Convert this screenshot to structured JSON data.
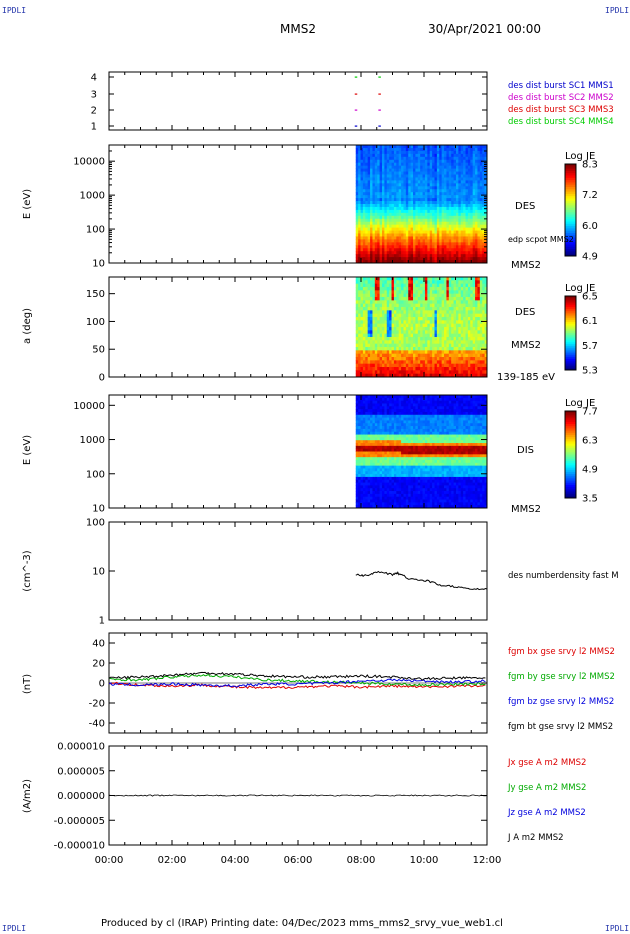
{
  "corners": {
    "tl": "IPDLI",
    "tr": "IPDLI",
    "bl": "IPDLI",
    "br": "IPDLI"
  },
  "header": {
    "title": "MMS2",
    "datetime": "30/Apr/2021 00:00"
  },
  "footer": {
    "text": "Produced by cl (IRAP)   Printing date: 04/Dec/2023   mms_mms2_srvy_vue_web1.cl"
  },
  "colors": {
    "mms1": "#0000cc",
    "mms2": "#cc00cc",
    "mms3": "#dd0000",
    "mms4": "#00cc00",
    "bx": "#dd0000",
    "by": "#00aa00",
    "bz": "#0000dd",
    "bt": "#000000"
  },
  "chart_data": [
    {
      "type": "scatter",
      "panel": "availability",
      "yticks": [
        "1",
        "2",
        "3",
        "4"
      ],
      "legend": [
        "des dist burst SC1 MMS1",
        "des dist burst SC2 MMS2",
        "des dist burst SC3 MMS3",
        "des dist burst SC4 MMS4"
      ],
      "marks": [
        {
          "x": "07:50",
          "sc": 4
        },
        {
          "x": "07:50",
          "sc": 3
        },
        {
          "x": "07:50",
          "sc": 2
        },
        {
          "x": "07:50",
          "sc": 1
        },
        {
          "x": "08:35",
          "sc": 4
        },
        {
          "x": "08:35",
          "sc": 3
        },
        {
          "x": "08:35",
          "sc": 2
        },
        {
          "x": "08:35",
          "sc": 1
        }
      ]
    },
    {
      "type": "heatmap",
      "panel": "des-energy",
      "ylabel": "E (eV)",
      "yscale": "log",
      "ylim": [
        10,
        30000
      ],
      "yticks": [
        "10",
        "100",
        "1000",
        "10000"
      ],
      "colorbar": {
        "title": "Log JE",
        "ticks": [
          "8.3",
          "7.2",
          "6.0",
          "4.9"
        ]
      },
      "labels": [
        "DES",
        "edp scpot MMS2",
        "MMS2"
      ],
      "data_start": "07:50"
    },
    {
      "type": "heatmap",
      "panel": "des-pitch",
      "ylabel": "a (deg)",
      "ylim": [
        0,
        180
      ],
      "yticks": [
        "0",
        "50",
        "100",
        "150"
      ],
      "colorbar": {
        "title": "Log JE",
        "ticks": [
          "6.5",
          "6.1",
          "5.7",
          "5.3"
        ]
      },
      "labels": [
        "DES",
        "MMS2",
        "139-185 eV"
      ],
      "data_start": "07:50"
    },
    {
      "type": "heatmap",
      "panel": "dis-energy",
      "ylabel": "E (eV)",
      "yscale": "log",
      "ylim": [
        10,
        20000
      ],
      "yticks": [
        "10",
        "100",
        "1000",
        "10000"
      ],
      "colorbar": {
        "title": "Log JE",
        "ticks": [
          "7.7",
          "6.3",
          "4.9",
          "3.5"
        ]
      },
      "labels": [
        "DIS",
        "MMS2"
      ],
      "data_start": "07:50"
    },
    {
      "type": "line",
      "panel": "density",
      "ylabel": "(cm^-3)",
      "yscale": "log",
      "ylim": [
        1,
        100
      ],
      "yticks": [
        "1",
        "10",
        "100"
      ],
      "legend": [
        "des numberdensity fast M"
      ],
      "series": [
        {
          "x": [
            "07:50",
            "08:10",
            "08:30",
            "09:00",
            "09:10",
            "09:30",
            "10:00",
            "10:30",
            "11:00",
            "11:30",
            "12:00"
          ],
          "y": [
            8.5,
            8.0,
            9.5,
            8.5,
            9.0,
            7.0,
            6.5,
            5.2,
            4.8,
            4.2,
            4.3
          ]
        }
      ]
    },
    {
      "type": "line",
      "panel": "magnetic-field",
      "ylabel": "(nT)",
      "ylim": [
        -50,
        50
      ],
      "yticks": [
        "-40",
        "-20",
        "0",
        "20",
        "40"
      ],
      "legend": [
        "fgm bx gse srvy l2 MMS2",
        "fgm by gse srvy l2 MMS2",
        "fgm bz gse srvy l2 MMS2",
        "fgm bt gse srvy l2 MMS2"
      ],
      "series": [
        {
          "name": "fgm bx gse srvy l2 MMS2",
          "x": [
            "00:00",
            "01:00",
            "02:00",
            "03:00",
            "04:00",
            "05:00",
            "06:00",
            "07:00",
            "08:00",
            "09:00",
            "10:00",
            "11:00",
            "12:00"
          ],
          "y": [
            0,
            -2,
            -3,
            -2,
            -4,
            -5,
            -4,
            -3,
            -4,
            -3,
            -4,
            -3,
            -3
          ]
        },
        {
          "name": "fgm by gse srvy l2 MMS2",
          "x": [
            "00:00",
            "01:00",
            "02:00",
            "03:00",
            "04:00",
            "05:00",
            "06:00",
            "07:00",
            "08:00",
            "09:00",
            "10:00",
            "11:00",
            "12:00"
          ],
          "y": [
            4,
            3,
            6,
            8,
            6,
            3,
            2,
            1,
            0,
            -1,
            -2,
            -1,
            -1
          ]
        },
        {
          "name": "fgm bz gse srvy l2 MMS2",
          "x": [
            "00:00",
            "01:00",
            "02:00",
            "03:00",
            "04:00",
            "05:00",
            "06:00",
            "07:00",
            "08:00",
            "09:00",
            "10:00",
            "11:00",
            "12:00"
          ],
          "y": [
            -1,
            -2,
            -1,
            -2,
            -3,
            -1,
            -1,
            0,
            2,
            3,
            2,
            1,
            2
          ]
        },
        {
          "name": "fgm bt gse srvy l2 MMS2",
          "x": [
            "00:00",
            "01:00",
            "02:00",
            "03:00",
            "04:00",
            "05:00",
            "06:00",
            "07:00",
            "08:00",
            "09:00",
            "10:00",
            "11:00",
            "12:00"
          ],
          "y": [
            5,
            6,
            8,
            10,
            9,
            7,
            6,
            6,
            7,
            6,
            4,
            5,
            5
          ]
        }
      ]
    },
    {
      "type": "line",
      "panel": "current",
      "ylabel": "(A/m2)",
      "ylim": [
        -1e-05,
        1e-05
      ],
      "yticks": [
        "-0.000010",
        "-0.000005",
        "0.000000",
        "0.000005",
        "0.000010"
      ],
      "legend": [
        "Jx gse A m2 MMS2",
        "Jy gse A m2 MMS2",
        "Jz gse A m2 MMS2",
        "J A m2 MMS2"
      ],
      "series": [
        {
          "name": "J A m2 MMS2",
          "x": [
            "00:00",
            "12:00"
          ],
          "y": [
            0,
            0
          ]
        }
      ]
    }
  ],
  "xaxis": {
    "ticks": [
      "00:00",
      "02:00",
      "04:00",
      "06:00",
      "08:00",
      "10:00",
      "12:00"
    ]
  }
}
